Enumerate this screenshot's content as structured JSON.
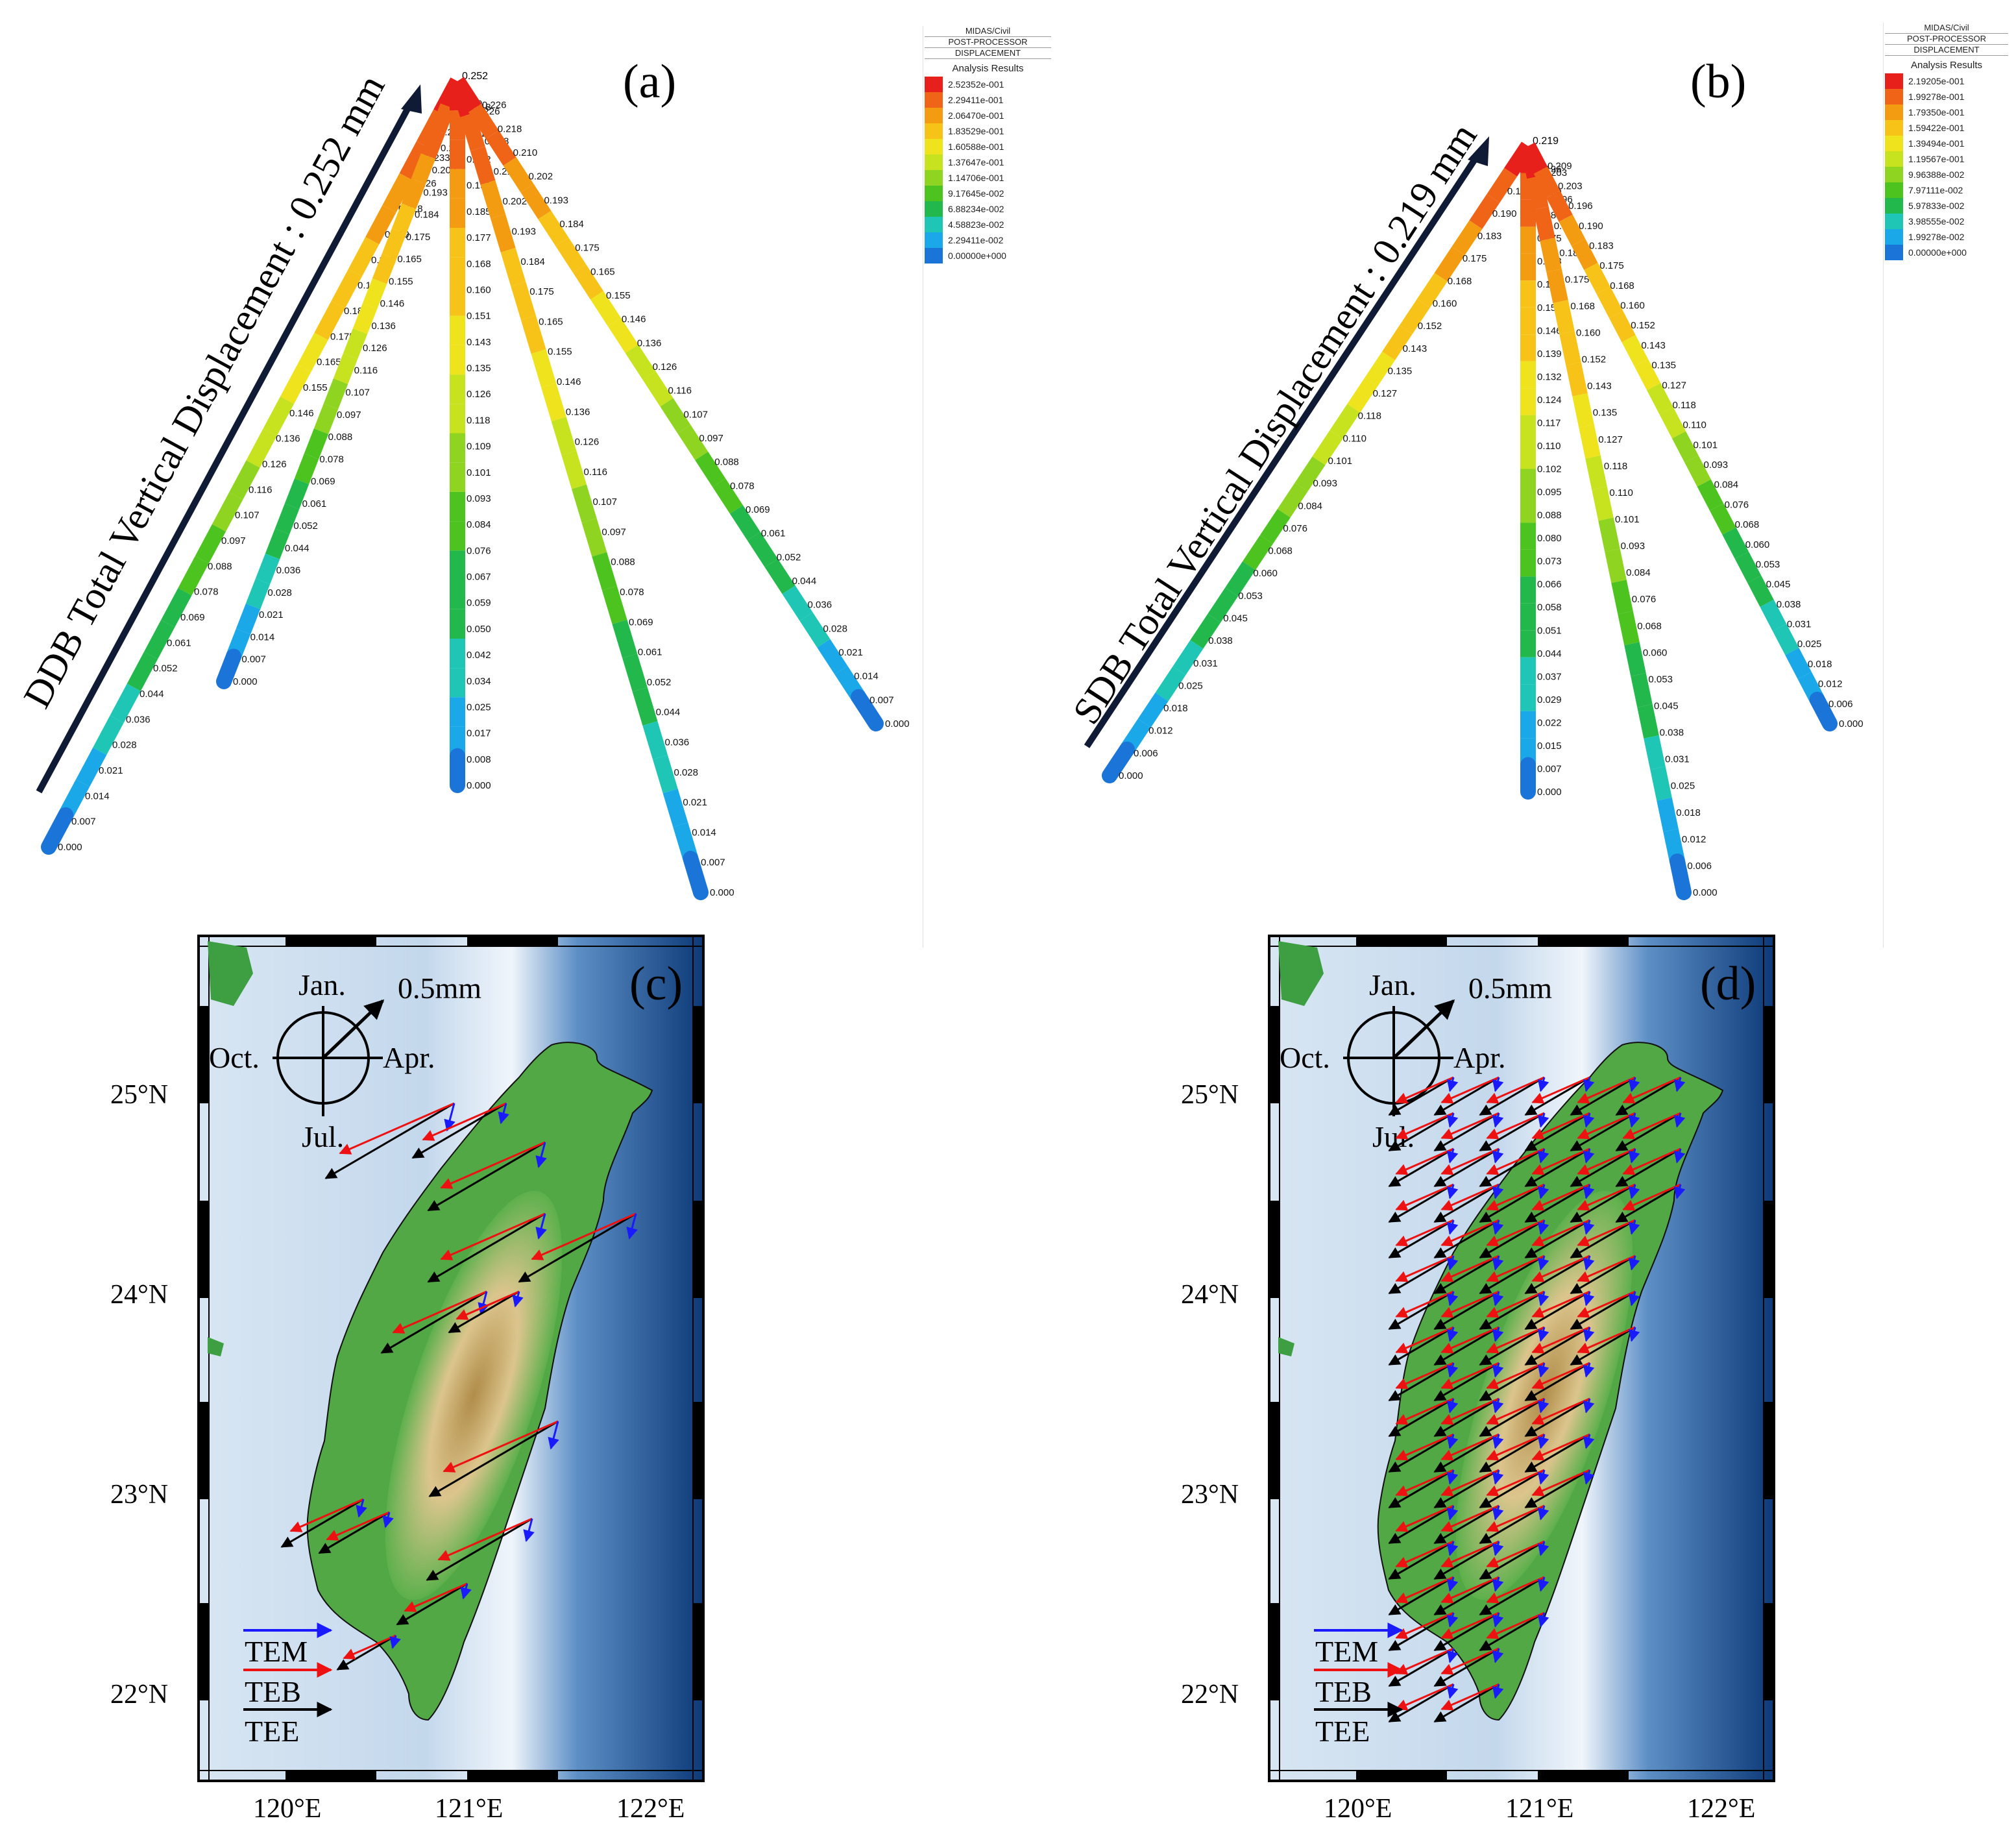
{
  "panel_a": {
    "label": "(a)",
    "axis_title": "DDB Total Vertical Displacement : 0.252 mm",
    "top_value": "0.252",
    "legend": {
      "software": "MIDAS/Civil",
      "processor": "POST-PROCESSOR",
      "type": "DISPLACEMENT",
      "results_title": "Analysis Results",
      "values": [
        "2.52352e-001",
        "2.29411e-001",
        "2.06470e-001",
        "1.83529e-001",
        "1.60588e-001",
        "1.37647e-001",
        "1.14706e-001",
        "9.17645e-002",
        "6.88234e-002",
        "4.58823e-002",
        "2.29411e-002",
        "0.00000e+000"
      ],
      "colors": [
        "#e8201b",
        "#f06418",
        "#f39c12",
        "#f7c318",
        "#eee31c",
        "#c7e21f",
        "#8fd421",
        "#4dc320",
        "#23b84b",
        "#1fc6b5",
        "#1aa8e8",
        "#1b74d8"
      ]
    },
    "legs": [
      {
        "labels": [
          "0.246",
          "0.240",
          "0.233",
          "0.226",
          "0.218",
          "0.210",
          "0.202",
          "0.193",
          "0.184",
          "0.175",
          "0.165",
          "0.155",
          "0.146",
          "0.136",
          "0.126",
          "0.116",
          "0.107",
          "0.097",
          "0.088",
          "0.078",
          "0.069",
          "0.061",
          "0.052",
          "0.044",
          "0.036",
          "0.028",
          "0.021",
          "0.014",
          "0.007",
          "0.000"
        ]
      },
      {
        "labels": [
          "0.240",
          "0.218",
          "0.210",
          "0.202",
          "0.193",
          "0.184",
          "0.175",
          "0.165",
          "0.155",
          "0.146",
          "0.136",
          "0.126",
          "0.116",
          "0.107",
          "0.097",
          "0.088",
          "0.078",
          "0.069",
          "0.061",
          "0.052",
          "0.044",
          "0.036",
          "0.028",
          "0.021",
          "0.014",
          "0.007",
          "0.000"
        ]
      },
      {
        "labels": [
          "0.218",
          "0.210",
          "0.202",
          "0.193",
          "0.185",
          "0.177",
          "0.168",
          "0.160",
          "0.151",
          "0.143",
          "0.135",
          "0.126",
          "0.118",
          "0.109",
          "0.101",
          "0.093",
          "0.084",
          "0.076",
          "0.067",
          "0.059",
          "0.050",
          "0.042",
          "0.034",
          "0.025",
          "0.017",
          "0.008",
          "0.000"
        ]
      },
      {
        "labels": [
          "0.226",
          "0.218",
          "0.210",
          "0.202",
          "0.193",
          "0.184",
          "0.175",
          "0.165",
          "0.155",
          "0.146",
          "0.136",
          "0.126",
          "0.116",
          "0.107",
          "0.097",
          "0.088",
          "0.078",
          "0.069",
          "0.061",
          "0.052",
          "0.044",
          "0.036",
          "0.028",
          "0.021",
          "0.014",
          "0.007",
          "0.000"
        ]
      },
      {
        "labels": [
          "0.226",
          "0.218",
          "0.210",
          "0.202",
          "0.193",
          "0.184",
          "0.175",
          "0.165",
          "0.155",
          "0.146",
          "0.136",
          "0.126",
          "0.116",
          "0.107",
          "0.097",
          "0.088",
          "0.078",
          "0.069",
          "0.061",
          "0.052",
          "0.044",
          "0.036",
          "0.028",
          "0.021",
          "0.014",
          "0.007",
          "0.000"
        ]
      }
    ]
  },
  "panel_b": {
    "label": "(b)",
    "axis_title": "SDB Total Vertical Displacement : 0.219 mm",
    "top_value": "0.219",
    "legend": {
      "software": "MIDAS/Civil",
      "processor": "POST-PROCESSOR",
      "type": "DISPLACEMENT",
      "results_title": "Analysis Results",
      "values": [
        "2.19205e-001",
        "1.99278e-001",
        "1.79350e-001",
        "1.59422e-001",
        "1.39494e-001",
        "1.19567e-001",
        "9.96388e-002",
        "7.97111e-002",
        "5.97833e-002",
        "3.98555e-002",
        "1.99278e-002",
        "0.00000e+000"
      ],
      "colors": [
        "#e8201b",
        "#f06418",
        "#f39c12",
        "#f7c318",
        "#eee31c",
        "#c7e21f",
        "#8fd421",
        "#4dc320",
        "#23b84b",
        "#1fc6b5",
        "#1aa8e8",
        "#1b74d8"
      ]
    },
    "legs": [
      {
        "labels": [
          "0.203",
          "0.196",
          "0.190",
          "0.183",
          "0.175",
          "0.168",
          "0.160",
          "0.152",
          "0.143",
          "0.135",
          "0.127",
          "0.118",
          "0.110",
          "0.101",
          "0.093",
          "0.084",
          "0.076",
          "0.068",
          "0.060",
          "0.053",
          "0.045",
          "0.038",
          "0.031",
          "0.025",
          "0.018",
          "0.012",
          "0.006",
          "0.000"
        ]
      },
      {
        "labels": [
          "0.196",
          "0.190",
          "0.183",
          "0.175",
          "0.168",
          "0.161",
          "0.153",
          "0.146",
          "0.139",
          "0.132",
          "0.124",
          "0.117",
          "0.110",
          "0.102",
          "0.095",
          "0.088",
          "0.080",
          "0.073",
          "0.066",
          "0.058",
          "0.051",
          "0.044",
          "0.037",
          "0.029",
          "0.022",
          "0.015",
          "0.007",
          "0.000"
        ]
      },
      {
        "labels": [
          "0.203",
          "0.196",
          "0.190",
          "0.183",
          "0.175",
          "0.168",
          "0.160",
          "0.152",
          "0.143",
          "0.135",
          "0.127",
          "0.118",
          "0.110",
          "0.101",
          "0.093",
          "0.084",
          "0.076",
          "0.068",
          "0.060",
          "0.053",
          "0.045",
          "0.038",
          "0.031",
          "0.025",
          "0.018",
          "0.012",
          "0.006",
          "0.000"
        ]
      },
      {
        "labels": [
          "0.209",
          "0.203",
          "0.196",
          "0.190",
          "0.183",
          "0.175",
          "0.168",
          "0.160",
          "0.152",
          "0.143",
          "0.135",
          "0.127",
          "0.118",
          "0.110",
          "0.101",
          "0.093",
          "0.084",
          "0.076",
          "0.068",
          "0.060",
          "0.053",
          "0.045",
          "0.038",
          "0.031",
          "0.025",
          "0.018",
          "0.012",
          "0.006",
          "0.000"
        ]
      }
    ]
  },
  "panel_c": {
    "label": "(c)",
    "compass": {
      "north": "Jan.",
      "east": "Apr.",
      "south": "Jul.",
      "west": "Oct.",
      "scale": "0.5mm"
    },
    "lat_ticks": [
      "25°N",
      "24°N",
      "23°N",
      "22°N"
    ],
    "lon_ticks": [
      "120°E",
      "121°E",
      "122°E"
    ],
    "legend": [
      {
        "name": "TEM",
        "color": "#1a1aff"
      },
      {
        "name": "TEB",
        "color": "#ee1111"
      },
      {
        "name": "TEE",
        "color": "#000000"
      }
    ]
  },
  "panel_d": {
    "label": "(d)",
    "compass": {
      "north": "Jan.",
      "east": "Apr.",
      "south": "Jul.",
      "west": "Oct.",
      "scale": "0.5mm"
    },
    "lat_ticks": [
      "25°N",
      "24°N",
      "23°N",
      "22°N"
    ],
    "lon_ticks": [
      "120°E",
      "121°E",
      "122°E"
    ],
    "legend": [
      {
        "name": "TEM",
        "color": "#1a1aff"
      },
      {
        "name": "TEB",
        "color": "#ee1111"
      },
      {
        "name": "TEE",
        "color": "#000000"
      }
    ]
  }
}
